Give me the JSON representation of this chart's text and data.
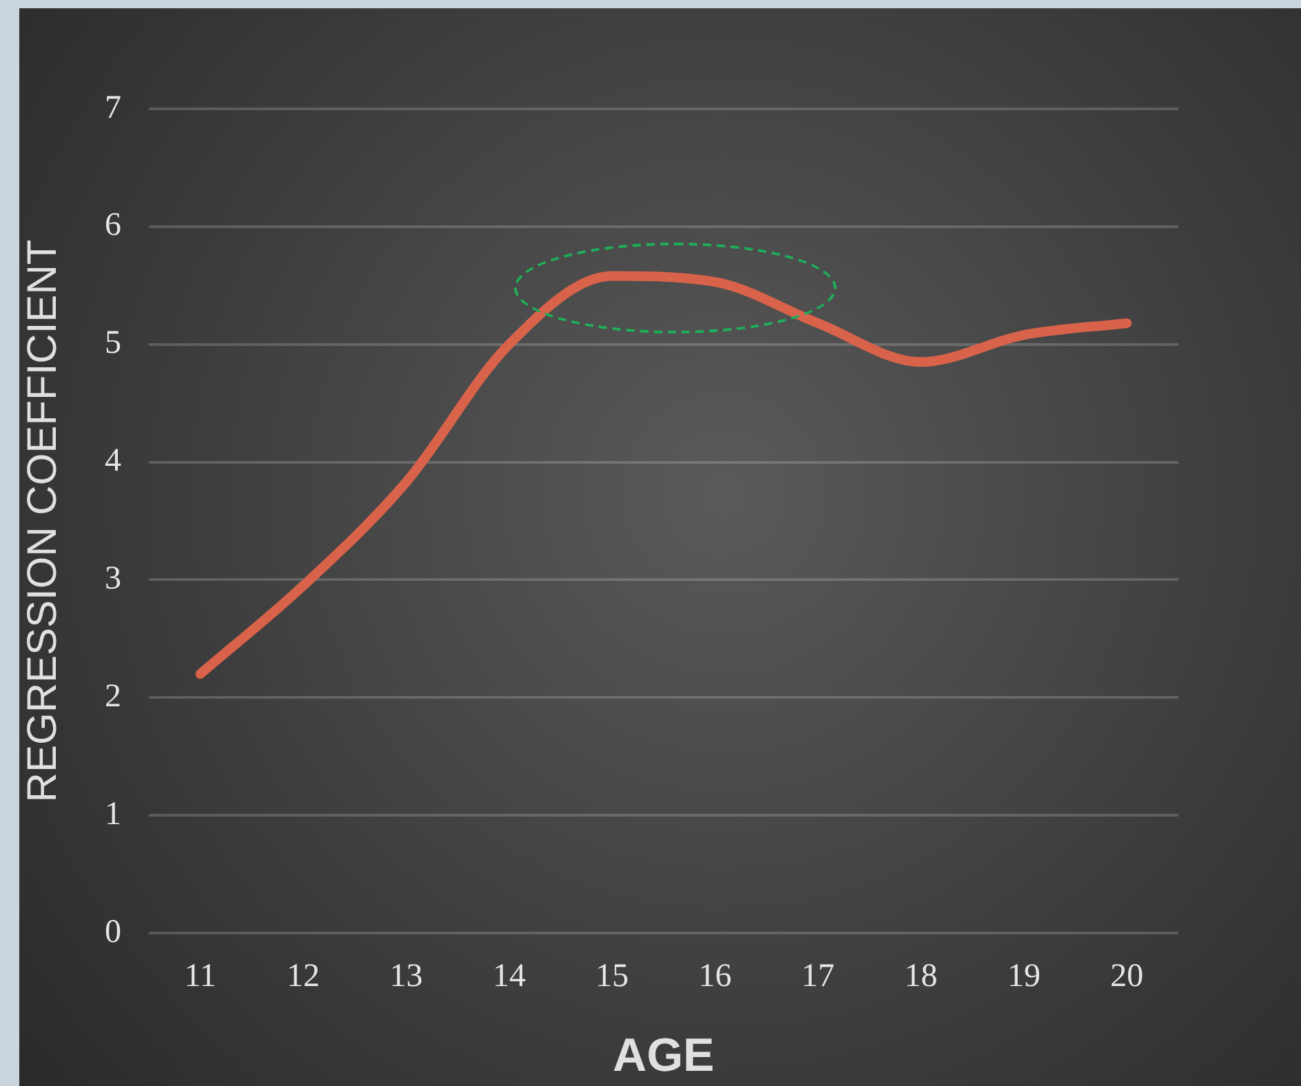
{
  "chart_data": {
    "type": "line",
    "xlabel": "AGE",
    "ylabel": "REGRESSION COEFFICIENT",
    "categories": [
      "11",
      "12",
      "13",
      "14",
      "15",
      "16",
      "17",
      "18",
      "19",
      "20"
    ],
    "series": [
      {
        "color": "#d9634a",
        "values": [
          2.2,
          2.95,
          3.83,
          5.0,
          5.58,
          5.53,
          5.18,
          4.85,
          5.08,
          5.18
        ]
      }
    ],
    "ylim": [
      0,
      7
    ],
    "yticks": [
      0,
      1,
      2,
      3,
      4,
      5,
      6,
      7
    ],
    "grid": "y",
    "legend": false,
    "marker": "none",
    "line_style": "solid"
  }
}
